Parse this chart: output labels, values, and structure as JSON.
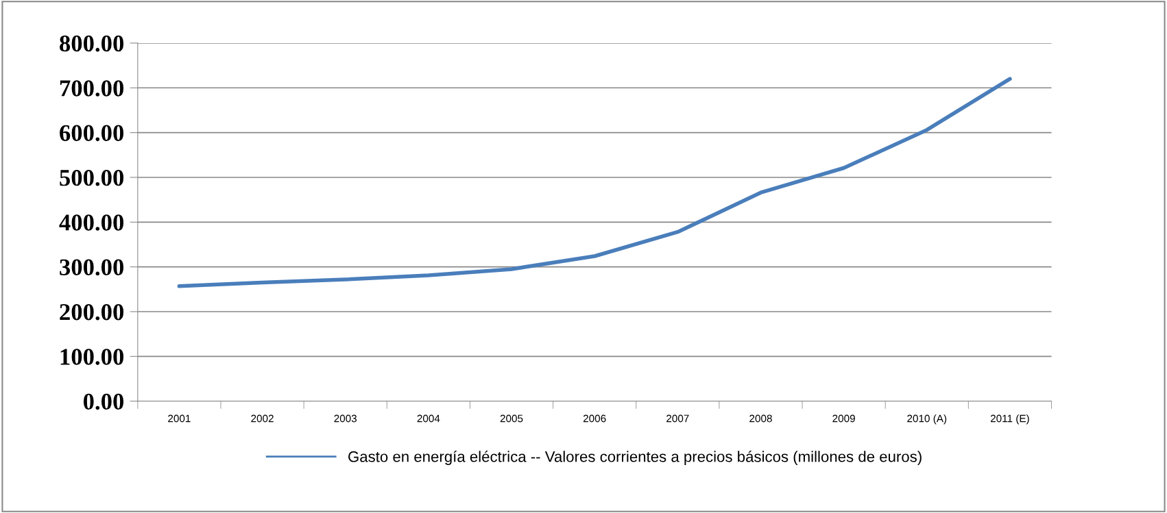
{
  "chart_data": {
    "type": "line",
    "categories": [
      "2001",
      "2002",
      "2003",
      "2004",
      "2005",
      "2006",
      "2007",
      "2008",
      "2009",
      "2010 (A)",
      "2011 (E)"
    ],
    "series": [
      {
        "name": "Gasto en energía eléctrica -- Valores corrientes a precios básicos (millones de euros)",
        "color": "#4a7ebb",
        "values": [
          257,
          265,
          272,
          281,
          295,
          324,
          378,
          466,
          521,
          606,
          720
        ]
      }
    ],
    "ylim": [
      0,
      800
    ],
    "yticks": [
      {
        "value": 0,
        "label": "0.00"
      },
      {
        "value": 100,
        "label": "100.00"
      },
      {
        "value": 200,
        "label": "200.00"
      },
      {
        "value": 300,
        "label": "300.00"
      },
      {
        "value": 400,
        "label": "400.00"
      },
      {
        "value": 500,
        "label": "500.00"
      },
      {
        "value": 600,
        "label": "600.00"
      },
      {
        "value": 700,
        "label": "700.00"
      },
      {
        "value": 800,
        "label": "800.00"
      }
    ],
    "grid": "y",
    "legend": "bottom",
    "marker": "none",
    "line_style": "solid"
  }
}
